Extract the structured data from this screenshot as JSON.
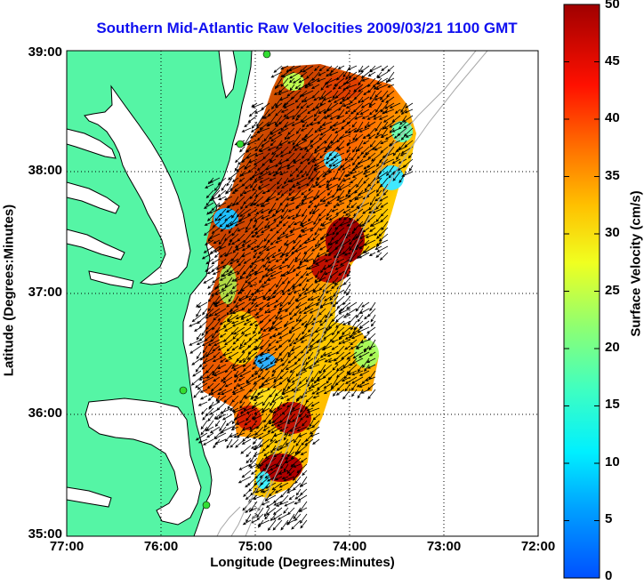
{
  "title": "Southern Mid-Atlantic Raw Velocities 2009/03/21 1100 GMT",
  "xlabel": "Longitude (Degrees:Minutes)",
  "ylabel": "Latitude (Degrees:Minutes)",
  "colorbar": {
    "label": "Surface Velocity (cm/s)",
    "min": 0,
    "max": 50,
    "ticks": [
      "0",
      "5",
      "10",
      "15",
      "20",
      "25",
      "30",
      "35",
      "40",
      "45",
      "50"
    ]
  },
  "x_ticks": [
    "77:00",
    "76:00",
    "75:00",
    "74:00",
    "73:00",
    "72:00"
  ],
  "y_ticks": [
    "39:00",
    "38:00",
    "37:00",
    "36:00",
    "35:00"
  ],
  "map": {
    "land_color": "#55f5a5",
    "coastline_color": "#000000",
    "vector_color": "#000000",
    "grid": true,
    "grid_style": "dotted"
  }
}
